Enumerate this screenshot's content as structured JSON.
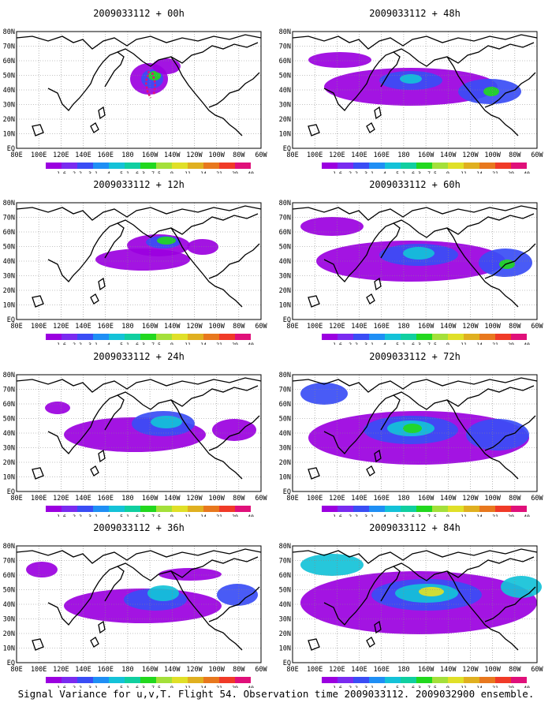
{
  "map": {
    "lat_labels": [
      "80N",
      "70N",
      "60N",
      "50N",
      "40N",
      "30N",
      "20N",
      "10N",
      "EQ"
    ],
    "lon_labels": [
      "80E",
      "100E",
      "120E",
      "140E",
      "160E",
      "180",
      "160W",
      "140W",
      "120W",
      "100W",
      "80W",
      "60W"
    ],
    "colorbar_labels": [
      "1.6",
      "2.2",
      "3.1",
      "4",
      "5.1",
      "6.3",
      "7.5",
      "9",
      "11",
      "14",
      "21",
      "29",
      "40"
    ],
    "colorbar_colors": [
      "#9b00e0",
      "#7a2bf0",
      "#3a4df5",
      "#1f8ff5",
      "#14c2d8",
      "#10cfa0",
      "#22d81f",
      "#a4e03a",
      "#e0e028",
      "#e0b020",
      "#e8781e",
      "#f03a28",
      "#e0107a"
    ],
    "field_colors": {
      "level1": "#9b00e0",
      "level2": "#3a4df5",
      "level3": "#14c2d8",
      "level4": "#22d81f",
      "level5": "#e0e028",
      "track": "#e0107a"
    }
  },
  "panels": [
    {
      "title": "2009033112 + 00h"
    },
    {
      "title": "2009033112 + 12h"
    },
    {
      "title": "2009033112 + 24h"
    },
    {
      "title": "2009033112 + 36h"
    },
    {
      "title": "2009033112 + 48h"
    },
    {
      "title": "2009033112 + 60h"
    },
    {
      "title": "2009033112 + 72h"
    },
    {
      "title": "2009033112 + 84h"
    }
  ],
  "caption": "Signal Variance for u,v,T. Flight 54. Observation time 2009033112. 2009032900 ensemble."
}
